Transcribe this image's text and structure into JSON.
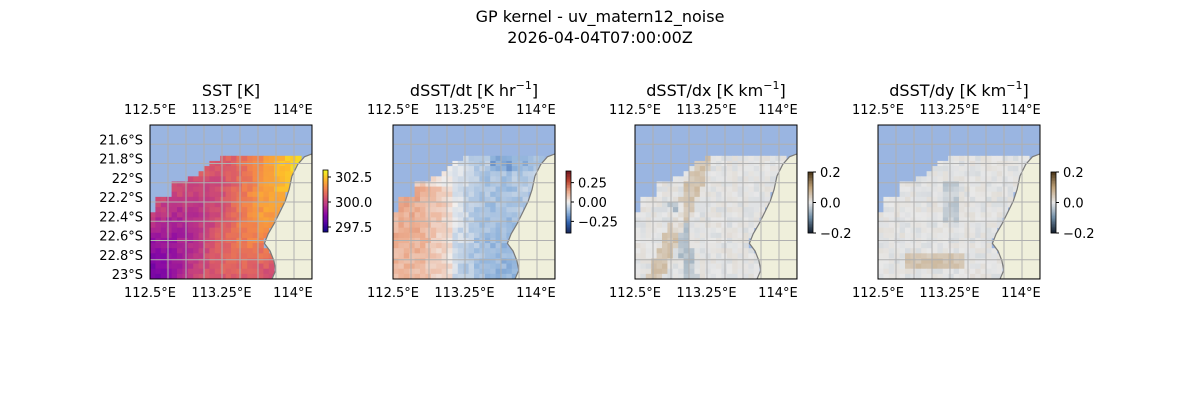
{
  "figure": {
    "title_line1": "GP kernel - uv_matern12_noise",
    "title_line2": "2026-04-04T07:00:00Z"
  },
  "chart_data": [
    {
      "type": "heatmap",
      "title": "SST [K]",
      "title_sup": "",
      "title_tail": "",
      "colormap": "plasma",
      "field": "sst",
      "x_ticks": [
        "112.5°E",
        "113.25°E",
        "114°E"
      ],
      "y_ticks": [
        "21.6°S",
        "21.8°S",
        "22°S",
        "22.2°S",
        "22.4°S",
        "22.6°S",
        "22.8°S",
        "23°S"
      ],
      "show_y_ticks": true,
      "colorbar": {
        "min": 297.0,
        "max": 303.2,
        "ticks": [
          297.5,
          300.0,
          302.5
        ],
        "tick_labels": [
          "297.5",
          "300.0",
          "302.5"
        ]
      }
    },
    {
      "type": "heatmap",
      "title": "dSST/dt [K hr",
      "title_sup": "−1",
      "title_tail": "]",
      "colormap": "balance",
      "field": "dsst_dt",
      "x_ticks": [
        "112.5°E",
        "113.25°E",
        "114°E"
      ],
      "y_ticks": [],
      "show_y_ticks": false,
      "colorbar": {
        "min": -0.4,
        "max": 0.4,
        "ticks": [
          0.25,
          0.0,
          -0.25
        ],
        "tick_labels": [
          "0.25",
          "0.00",
          "−0.25"
        ]
      }
    },
    {
      "type": "heatmap",
      "title": "dSST/dx [K km",
      "title_sup": "−1",
      "title_tail": "]",
      "colormap": "diff",
      "field": "dsst_dx",
      "x_ticks": [
        "112.5°E",
        "113.25°E",
        "114°E"
      ],
      "y_ticks": [],
      "show_y_ticks": false,
      "colorbar": {
        "min": -0.2,
        "max": 0.2,
        "ticks": [
          0.2,
          0.0,
          -0.2
        ],
        "tick_labels": [
          "0.2",
          "0.0",
          "−0.2"
        ]
      }
    },
    {
      "type": "heatmap",
      "title": "dSST/dy [K km",
      "title_sup": "−1",
      "title_tail": "]",
      "colormap": "diff",
      "field": "dsst_dy",
      "x_ticks": [
        "112.5°E",
        "113.25°E",
        "114°E"
      ],
      "y_ticks": [],
      "show_y_ticks": false,
      "colorbar": {
        "min": -0.2,
        "max": 0.2,
        "ticks": [
          0.2,
          0.0,
          -0.2
        ],
        "tick_labels": [
          "0.2",
          "0.0",
          "−0.2"
        ]
      }
    }
  ],
  "colors": {
    "ocean_mask": "#9ab5e1",
    "land": "#efefdb",
    "coast": "#7a7a7a",
    "grid": "#b0b0b0"
  }
}
